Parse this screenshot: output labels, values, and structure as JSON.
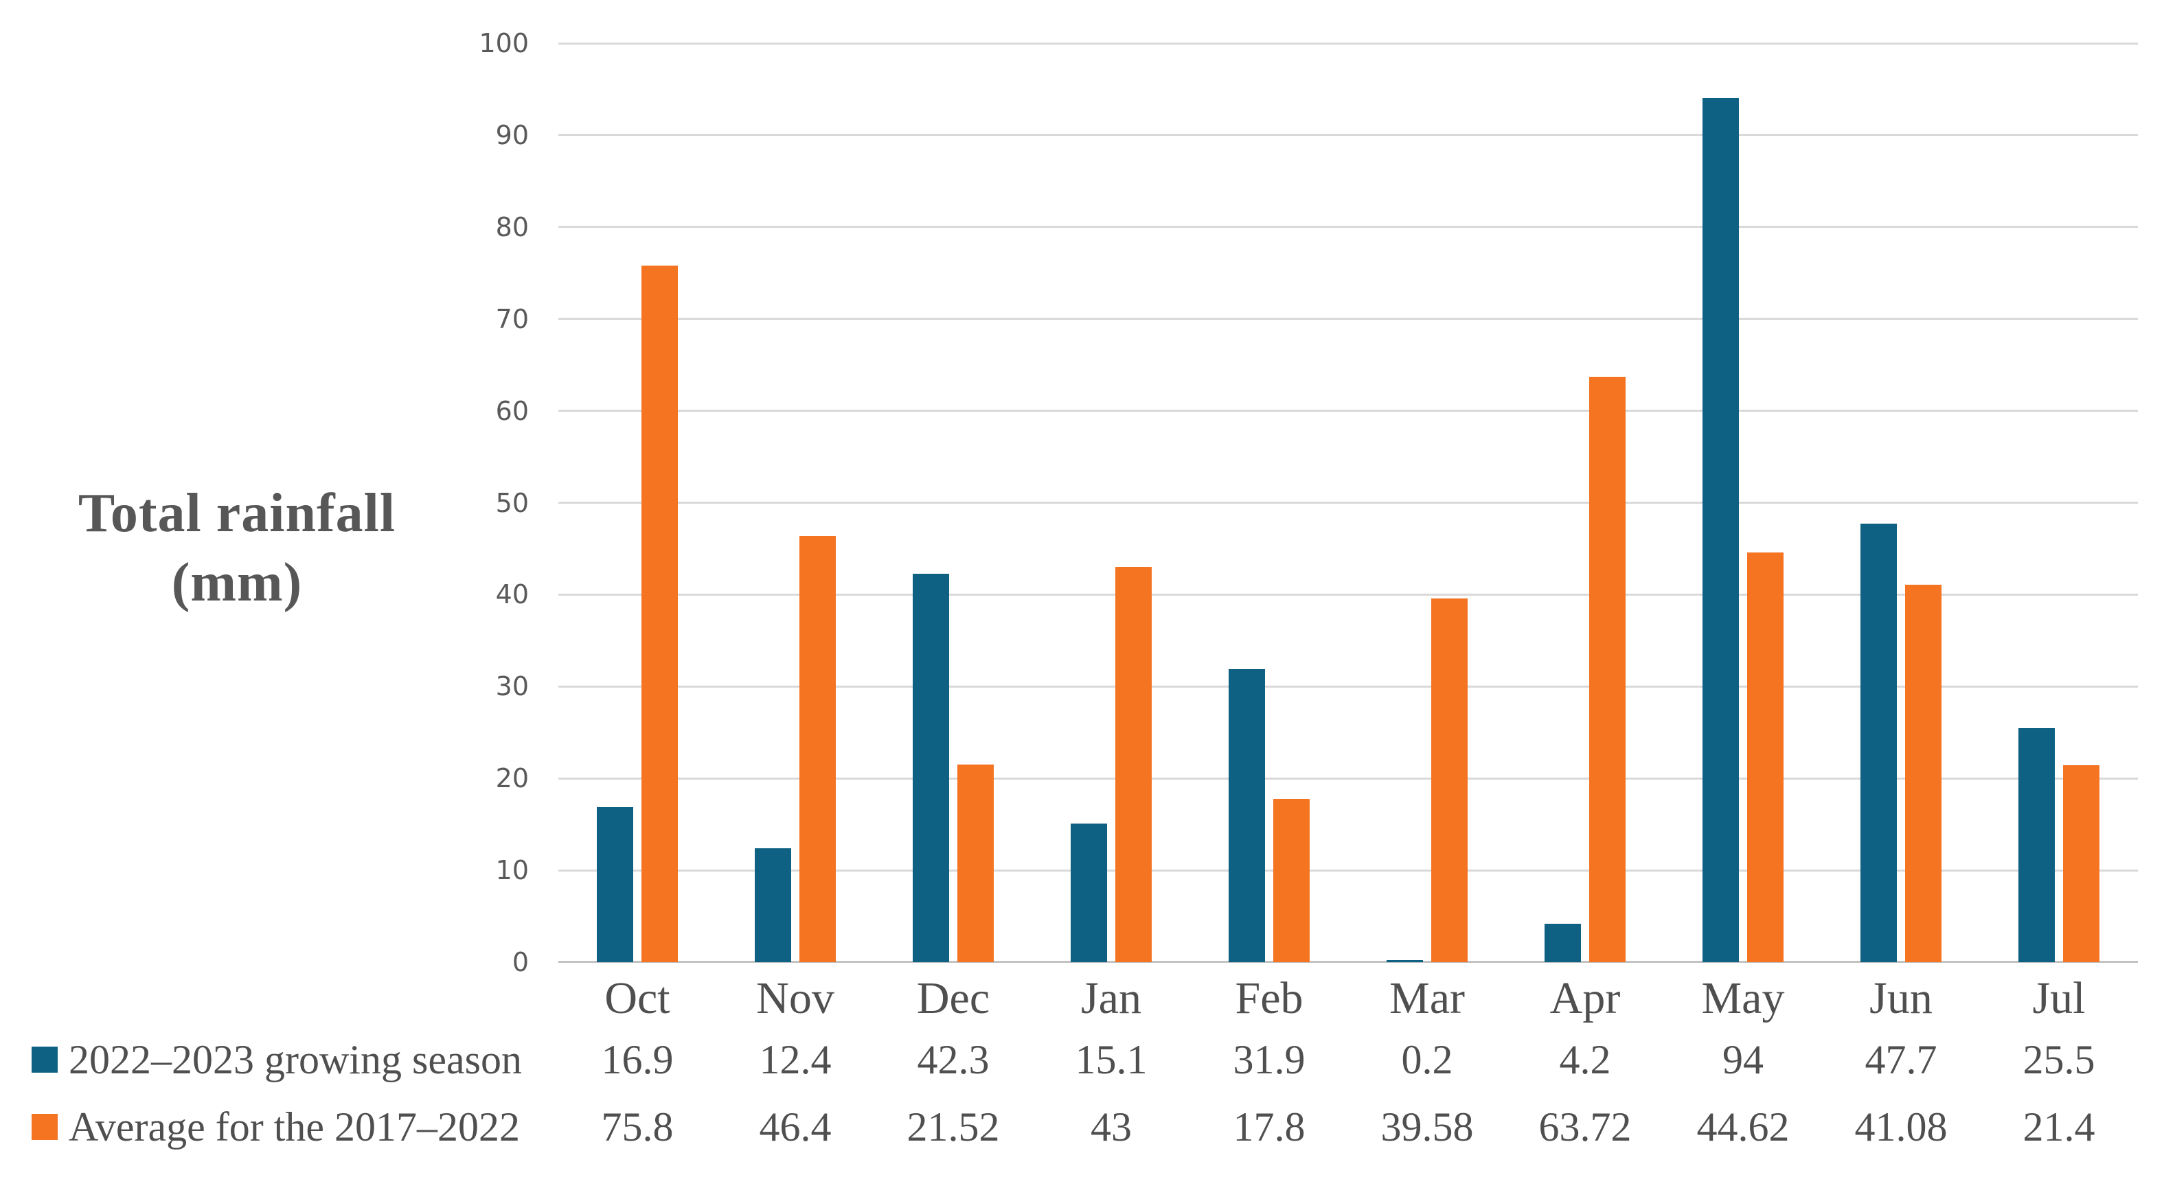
{
  "y_axis_title": {
    "line1": "Total rainfall",
    "line2": "(mm)"
  },
  "chart_data": {
    "type": "bar",
    "title": "",
    "ylabel": "Total rainfall (mm)",
    "xlabel": "",
    "categories": [
      "Oct",
      "Nov",
      "Dec",
      "Jan",
      "Feb",
      "Mar",
      "Apr",
      "May",
      "Jun",
      "Jul"
    ],
    "series": [
      {
        "key": "2022-2023-growing-season",
        "name": "2022–2023 growing season",
        "color": "#0f6183",
        "values": [
          16.9,
          12.4,
          42.3,
          15.1,
          31.9,
          0.2,
          4.2,
          94,
          47.7,
          25.5
        ]
      },
      {
        "key": "average-2017-2022",
        "name": "Average for the 2017–2022",
        "color": "#f47422",
        "values": [
          75.8,
          46.4,
          21.52,
          43,
          17.8,
          39.58,
          63.72,
          44.62,
          41.08,
          21.4
        ]
      }
    ],
    "ylim": [
      0,
      100
    ],
    "yticks": [
      0,
      10,
      20,
      30,
      40,
      50,
      60,
      70,
      80,
      90,
      100
    ],
    "grid": true,
    "legend_position": "bottom-left-table",
    "colors": {
      "gridline": "#d9d9d9",
      "axis_line": "#c3c3c3",
      "tick_text": "#595959",
      "label_text": "#4f4f4f"
    }
  }
}
